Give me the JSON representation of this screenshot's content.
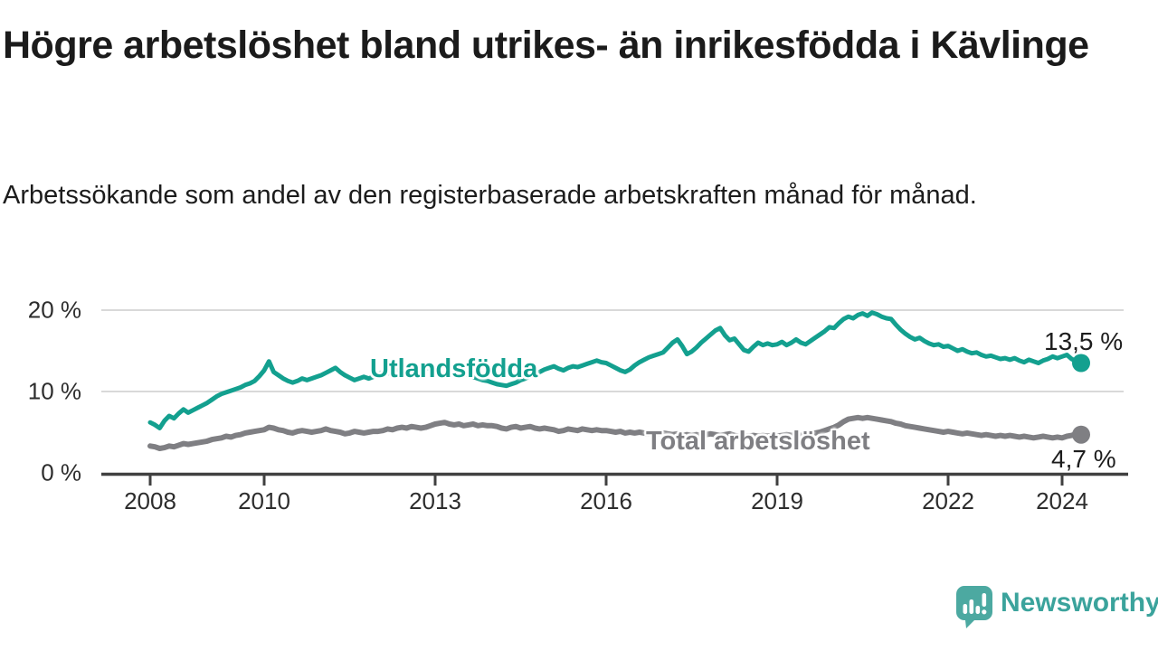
{
  "header": {
    "title": "Högre arbetslöshet bland utrikes- än inrikesfödda i Kävlinge",
    "subtitle": "Arbetssökande som andel av den registerbaserade arbetskraften månad för månad."
  },
  "footer": {
    "brand": "Newsworthy",
    "brand_color": "#3ba39c",
    "logo_bubble_color": "#4CA9A1",
    "logo_glyph": "bar-chart-with-exclamation-in-speech-bubble"
  },
  "colors": {
    "axis": "#404040",
    "grid": "#d9d9d9",
    "tick_text": "#2d2d2d",
    "value_text": "#1d1d1d",
    "background": "#ffffff"
  },
  "chart_data": {
    "type": "line",
    "title": "Högre arbetslöshet bland utrikes- än inrikesfödda i Kävlinge",
    "subtitle": "Arbetssökande som andel av den registerbaserade arbetskraften månad för månad.",
    "x_unit": "month",
    "x_start": "2008-01",
    "x_end": "2024-05",
    "ylim": [
      0,
      22
    ],
    "grid": "horizontal",
    "legend_position": "inline-labels",
    "x_axis": {
      "ticks": [
        {
          "year": 2008,
          "label": "2008"
        },
        {
          "year": 2010,
          "label": "2010"
        },
        {
          "year": 2013,
          "label": "2013"
        },
        {
          "year": 2016,
          "label": "2016"
        },
        {
          "year": 2019,
          "label": "2019"
        },
        {
          "year": 2022,
          "label": "2022"
        },
        {
          "year": 2024,
          "label": "2024"
        }
      ]
    },
    "y_axis": {
      "ticks": [
        {
          "value": 0,
          "label": "0 %"
        },
        {
          "value": 10,
          "label": "10 %"
        },
        {
          "value": 20,
          "label": "20 %"
        }
      ]
    },
    "series": [
      {
        "name": "Utlandsfödda",
        "label": "Utlandsfödda",
        "color": "#13a08f",
        "end_value": 13.5,
        "end_label": "13,5 %",
        "values": [
          6.2,
          5.9,
          5.5,
          6.4,
          7.0,
          6.7,
          7.3,
          7.8,
          7.4,
          7.7,
          8.0,
          8.3,
          8.6,
          9.0,
          9.4,
          9.7,
          9.9,
          10.1,
          10.3,
          10.5,
          10.8,
          11.0,
          11.3,
          11.9,
          12.6,
          13.7,
          12.4,
          12.0,
          11.6,
          11.3,
          11.1,
          11.3,
          11.6,
          11.4,
          11.6,
          11.8,
          12.0,
          12.3,
          12.6,
          12.9,
          12.4,
          12.0,
          11.7,
          11.4,
          11.6,
          11.8,
          11.6,
          11.8,
          12.1,
          12.4,
          12.2,
          12.5,
          12.7,
          12.5,
          12.7,
          12.9,
          12.8,
          12.6,
          12.8,
          12.9,
          13.0,
          13.2,
          13.3,
          13.0,
          12.8,
          12.5,
          12.3,
          12.0,
          11.8,
          11.6,
          11.4,
          11.3,
          11.1,
          10.9,
          10.8,
          10.7,
          10.9,
          11.1,
          11.4,
          11.6,
          11.9,
          12.1,
          12.4,
          12.7,
          12.9,
          13.1,
          12.8,
          12.6,
          12.9,
          13.1,
          13.0,
          13.2,
          13.4,
          13.6,
          13.8,
          13.6,
          13.5,
          13.2,
          12.9,
          12.6,
          12.4,
          12.7,
          13.2,
          13.6,
          13.9,
          14.2,
          14.4,
          14.6,
          14.8,
          15.4,
          16.0,
          16.4,
          15.6,
          14.6,
          14.9,
          15.4,
          16.0,
          16.5,
          17.0,
          17.5,
          17.8,
          16.9,
          16.3,
          16.5,
          15.8,
          15.1,
          14.9,
          15.5,
          16.0,
          15.7,
          15.9,
          15.7,
          15.8,
          16.1,
          15.7,
          16.0,
          16.4,
          16.0,
          15.8,
          16.2,
          16.6,
          17.0,
          17.4,
          17.9,
          17.8,
          18.4,
          18.9,
          19.2,
          19.0,
          19.4,
          19.6,
          19.3,
          19.7,
          19.5,
          19.2,
          19.0,
          18.9,
          18.2,
          17.6,
          17.1,
          16.7,
          16.4,
          16.6,
          16.2,
          15.9,
          15.7,
          15.8,
          15.5,
          15.6,
          15.3,
          15.0,
          15.2,
          14.9,
          14.7,
          14.8,
          14.5,
          14.3,
          14.4,
          14.2,
          14.0,
          14.1,
          13.9,
          14.1,
          13.8,
          13.6,
          13.9,
          13.7,
          13.5,
          13.8,
          14.0,
          14.3,
          14.1,
          14.3,
          14.5,
          14.0,
          13.7,
          13.5
        ]
      },
      {
        "name": "Total arbetslöshet",
        "label": "Total arbetslöshet",
        "color": "#7f7f83",
        "end_value": 4.7,
        "end_label": "4,7 %",
        "values": [
          3.3,
          3.2,
          3.0,
          3.1,
          3.3,
          3.2,
          3.4,
          3.6,
          3.5,
          3.6,
          3.7,
          3.8,
          3.9,
          4.1,
          4.2,
          4.3,
          4.5,
          4.4,
          4.6,
          4.7,
          4.9,
          5.0,
          5.1,
          5.2,
          5.3,
          5.6,
          5.5,
          5.3,
          5.2,
          5.0,
          4.9,
          5.1,
          5.2,
          5.1,
          5.0,
          5.1,
          5.2,
          5.4,
          5.2,
          5.1,
          5.0,
          4.8,
          4.9,
          5.1,
          5.0,
          4.9,
          5.0,
          5.1,
          5.1,
          5.2,
          5.4,
          5.3,
          5.5,
          5.6,
          5.5,
          5.7,
          5.6,
          5.5,
          5.6,
          5.8,
          6.0,
          6.1,
          6.2,
          6.0,
          5.9,
          6.0,
          5.8,
          5.9,
          6.0,
          5.8,
          5.9,
          5.8,
          5.8,
          5.7,
          5.5,
          5.4,
          5.6,
          5.7,
          5.5,
          5.6,
          5.7,
          5.5,
          5.4,
          5.5,
          5.4,
          5.3,
          5.1,
          5.2,
          5.4,
          5.3,
          5.2,
          5.4,
          5.3,
          5.2,
          5.3,
          5.2,
          5.2,
          5.1,
          5.0,
          5.1,
          4.9,
          5.0,
          4.9,
          5.0,
          4.9,
          4.8,
          4.9,
          4.8,
          4.9,
          4.8,
          4.7,
          4.8,
          4.6,
          4.7,
          4.6,
          4.7,
          4.6,
          4.7,
          4.8,
          4.7,
          4.6,
          4.7,
          4.8,
          4.6,
          4.5,
          4.6,
          4.5,
          4.6,
          4.5,
          4.6,
          4.5,
          4.6,
          4.5,
          4.6,
          4.7,
          4.6,
          4.7,
          4.6,
          4.7,
          4.8,
          4.9,
          5.0,
          5.2,
          5.4,
          5.6,
          5.9,
          6.3,
          6.6,
          6.7,
          6.8,
          6.7,
          6.8,
          6.7,
          6.6,
          6.5,
          6.4,
          6.3,
          6.1,
          6.0,
          5.8,
          5.7,
          5.6,
          5.5,
          5.4,
          5.3,
          5.2,
          5.1,
          5.0,
          5.1,
          5.0,
          4.9,
          4.8,
          4.9,
          4.8,
          4.7,
          4.6,
          4.7,
          4.6,
          4.5,
          4.6,
          4.5,
          4.6,
          4.5,
          4.4,
          4.5,
          4.4,
          4.3,
          4.4,
          4.5,
          4.4,
          4.3,
          4.4,
          4.3,
          4.5,
          4.6,
          4.8,
          4.7
        ]
      }
    ]
  }
}
